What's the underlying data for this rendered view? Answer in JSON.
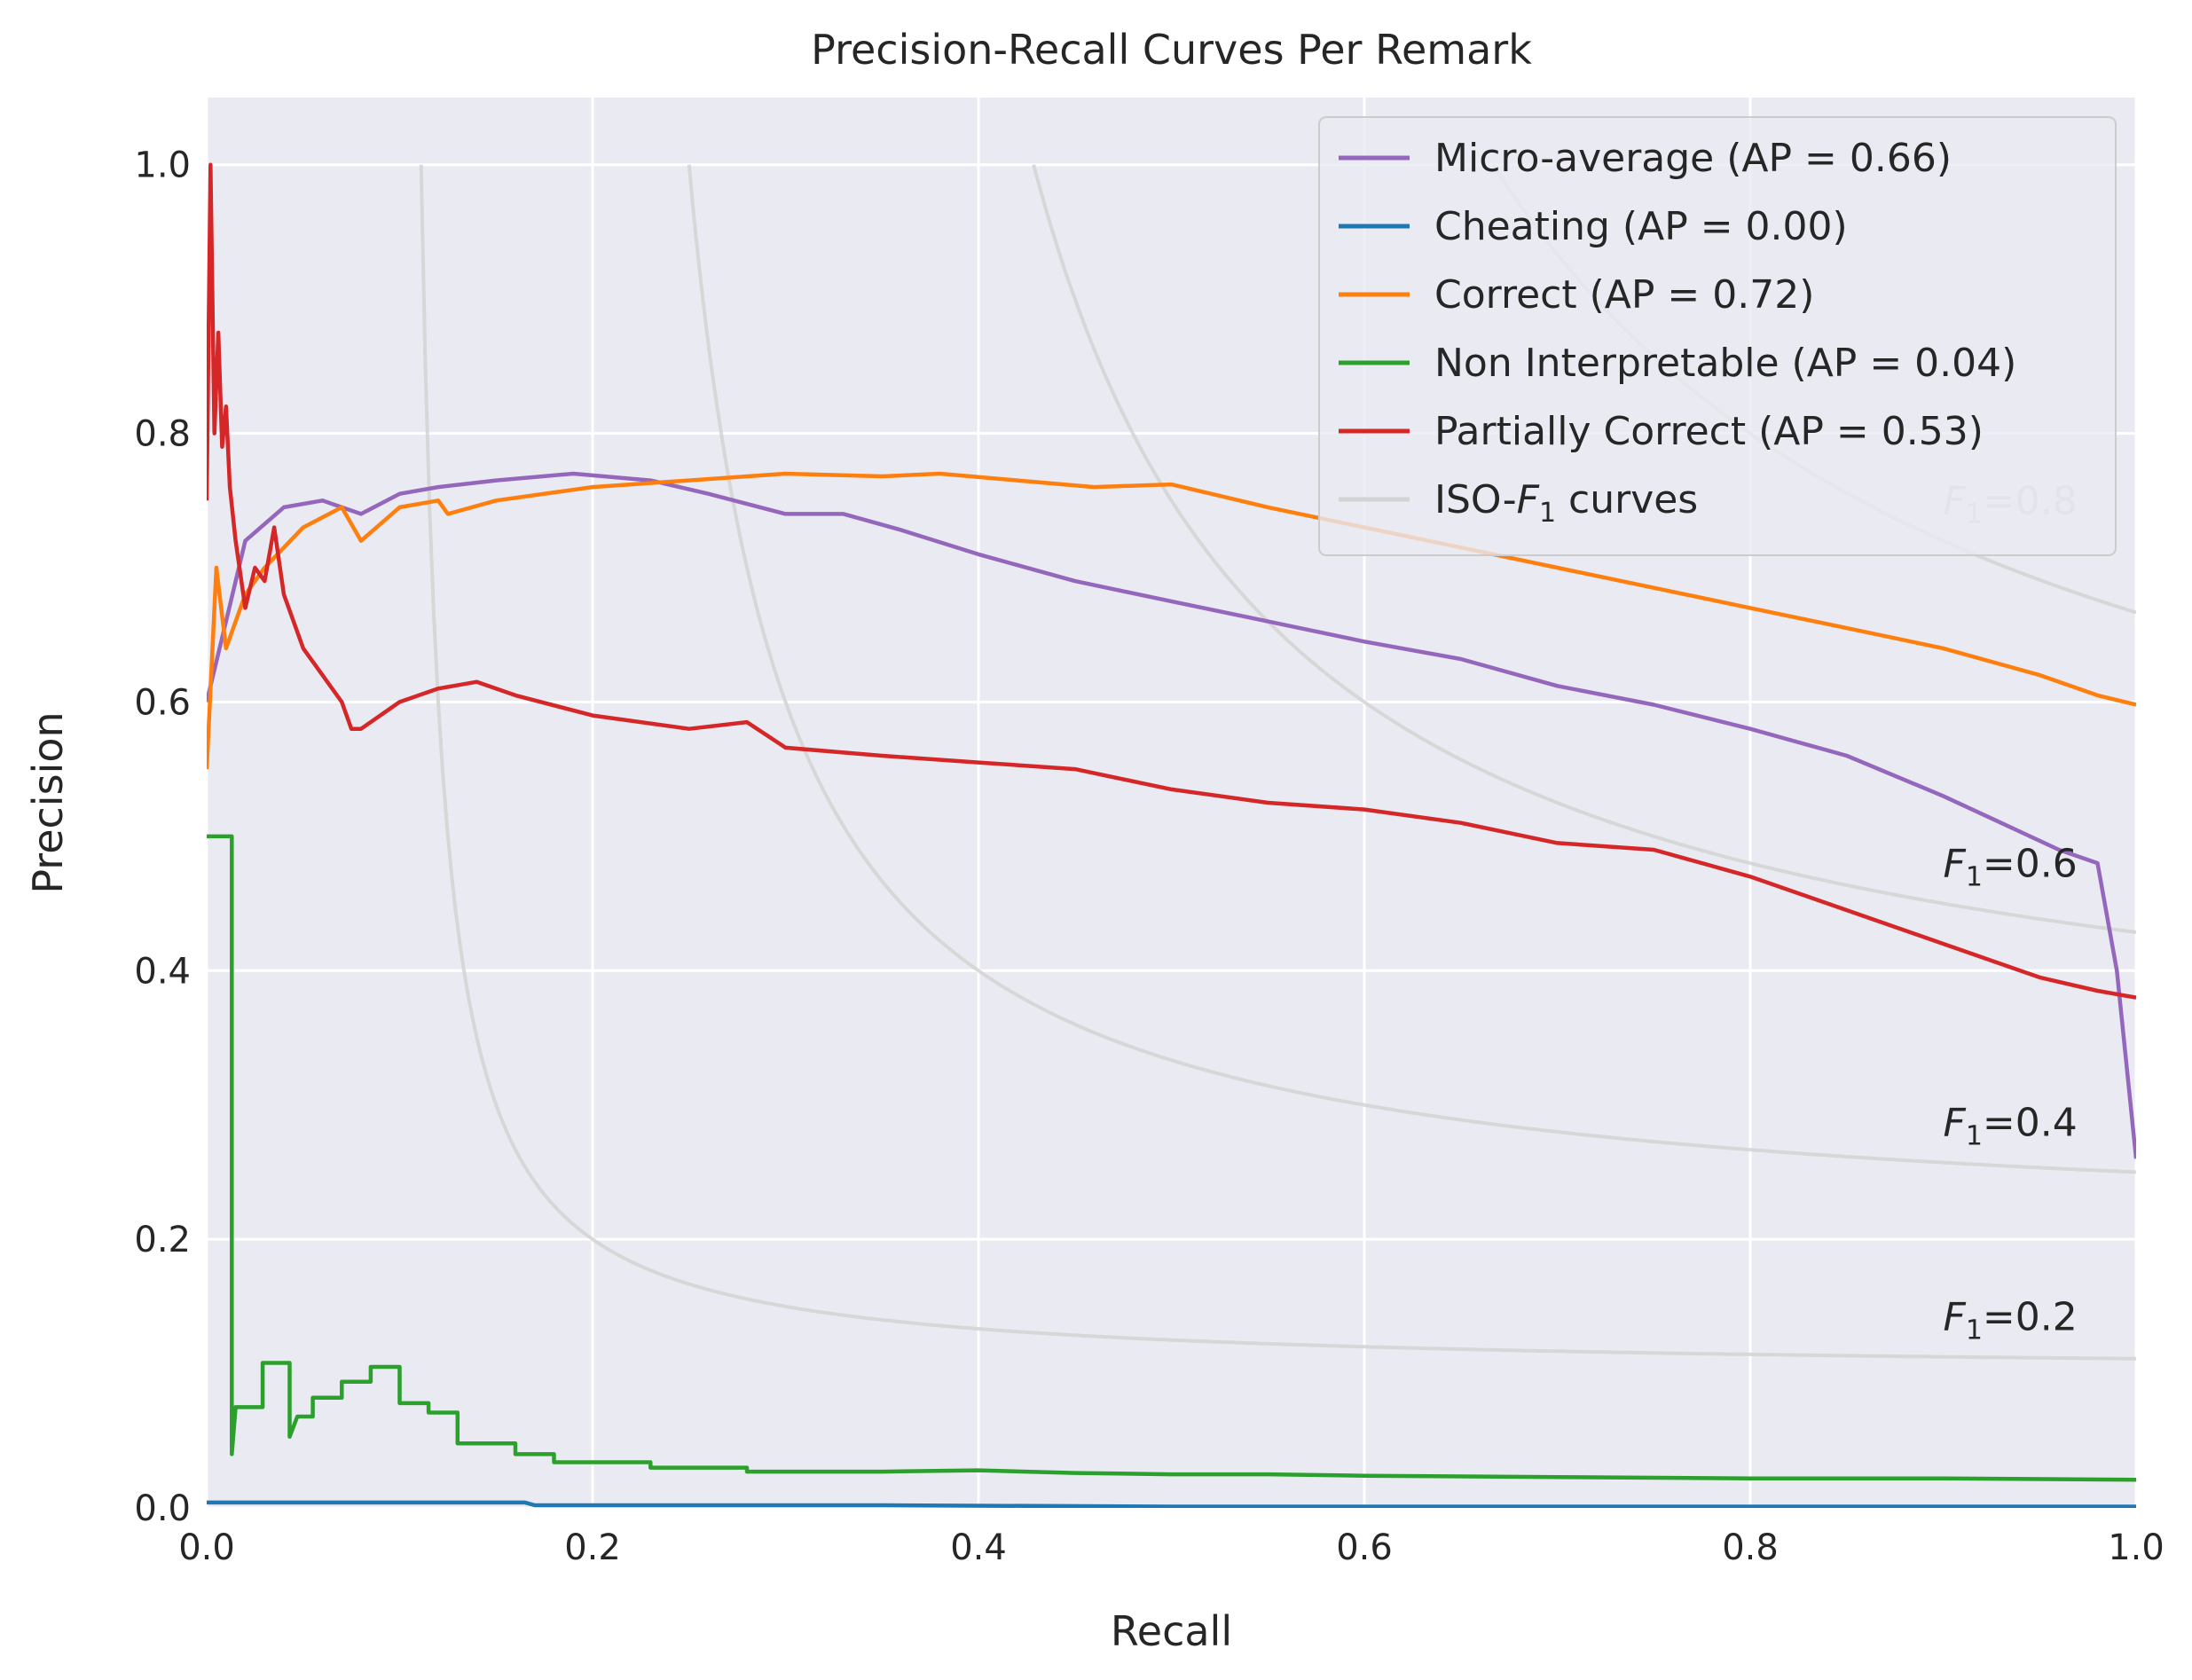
{
  "chart_data": {
    "type": "line",
    "title": "Precision-Recall Curves Per Remark",
    "xlabel": "Recall",
    "ylabel": "Precision",
    "xlim": [
      0.0,
      1.0
    ],
    "ylim": [
      0.0,
      1.05
    ],
    "x_ticks": [
      0.0,
      0.2,
      0.4,
      0.6,
      0.8,
      1.0
    ],
    "x_tick_labels": [
      "0.0",
      "0.2",
      "0.4",
      "0.6",
      "0.8",
      "1.0"
    ],
    "y_ticks": [
      0.0,
      0.2,
      0.4,
      0.6,
      0.8,
      1.0
    ],
    "y_tick_labels": [
      "0.0",
      "0.2",
      "0.4",
      "0.6",
      "0.8",
      "1.0"
    ],
    "grid": true,
    "legend_position": "top-right",
    "series": [
      {
        "name": "Micro-average",
        "legend_label": "Micro-average (AP = 0.66)",
        "color": "#9467bd",
        "step": false,
        "points": [
          [
            0.0,
            0.6
          ],
          [
            0.01,
            0.66
          ],
          [
            0.02,
            0.72
          ],
          [
            0.04,
            0.745
          ],
          [
            0.06,
            0.75
          ],
          [
            0.08,
            0.74
          ],
          [
            0.1,
            0.755
          ],
          [
            0.12,
            0.76
          ],
          [
            0.15,
            0.765
          ],
          [
            0.19,
            0.77
          ],
          [
            0.23,
            0.765
          ],
          [
            0.26,
            0.755
          ],
          [
            0.3,
            0.74
          ],
          [
            0.33,
            0.74
          ],
          [
            0.36,
            0.728
          ],
          [
            0.4,
            0.71
          ],
          [
            0.45,
            0.69
          ],
          [
            0.5,
            0.675
          ],
          [
            0.55,
            0.66
          ],
          [
            0.6,
            0.645
          ],
          [
            0.65,
            0.632
          ],
          [
            0.7,
            0.612
          ],
          [
            0.75,
            0.598
          ],
          [
            0.8,
            0.58
          ],
          [
            0.85,
            0.56
          ],
          [
            0.9,
            0.53
          ],
          [
            0.93,
            0.51
          ],
          [
            0.96,
            0.49
          ],
          [
            0.98,
            0.48
          ],
          [
            0.99,
            0.4
          ],
          [
            1.0,
            0.26
          ]
        ]
      },
      {
        "name": "Cheating",
        "legend_label": "Cheating (AP = 0.00)",
        "color": "#1f77b4",
        "step": false,
        "points": [
          [
            0.0,
            0.004
          ],
          [
            0.165,
            0.004
          ],
          [
            0.17,
            0.002
          ],
          [
            0.35,
            0.002
          ],
          [
            0.5,
            0.001
          ],
          [
            1.0,
            0.001
          ]
        ]
      },
      {
        "name": "Correct",
        "legend_label": "Correct (AP = 0.72)",
        "color": "#ff7f0e",
        "step": false,
        "points": [
          [
            0.0,
            0.55
          ],
          [
            0.005,
            0.7
          ],
          [
            0.01,
            0.64
          ],
          [
            0.02,
            0.68
          ],
          [
            0.03,
            0.7
          ],
          [
            0.05,
            0.73
          ],
          [
            0.07,
            0.745
          ],
          [
            0.08,
            0.72
          ],
          [
            0.1,
            0.745
          ],
          [
            0.12,
            0.75
          ],
          [
            0.125,
            0.74
          ],
          [
            0.15,
            0.75
          ],
          [
            0.2,
            0.76
          ],
          [
            0.25,
            0.765
          ],
          [
            0.3,
            0.77
          ],
          [
            0.35,
            0.768
          ],
          [
            0.38,
            0.77
          ],
          [
            0.42,
            0.765
          ],
          [
            0.46,
            0.76
          ],
          [
            0.5,
            0.762
          ],
          [
            0.55,
            0.745
          ],
          [
            0.6,
            0.73
          ],
          [
            0.65,
            0.715
          ],
          [
            0.7,
            0.7
          ],
          [
            0.75,
            0.685
          ],
          [
            0.8,
            0.67
          ],
          [
            0.85,
            0.655
          ],
          [
            0.9,
            0.64
          ],
          [
            0.95,
            0.62
          ],
          [
            0.98,
            0.605
          ],
          [
            1.0,
            0.598
          ]
        ]
      },
      {
        "name": "Non Interpretable",
        "legend_label": "Non Interpretable (AP = 0.04)",
        "color": "#2ca02c",
        "step": true,
        "points": [
          [
            0.0,
            0.5
          ],
          [
            0.013,
            0.5
          ],
          [
            0.013,
            0.04
          ],
          [
            0.015,
            0.075
          ],
          [
            0.029,
            0.075
          ],
          [
            0.029,
            0.108
          ],
          [
            0.043,
            0.108
          ],
          [
            0.043,
            0.053
          ],
          [
            0.047,
            0.068
          ],
          [
            0.055,
            0.068
          ],
          [
            0.055,
            0.082
          ],
          [
            0.07,
            0.082
          ],
          [
            0.07,
            0.094
          ],
          [
            0.085,
            0.094
          ],
          [
            0.085,
            0.105
          ],
          [
            0.1,
            0.105
          ],
          [
            0.1,
            0.078
          ],
          [
            0.115,
            0.078
          ],
          [
            0.115,
            0.071
          ],
          [
            0.13,
            0.071
          ],
          [
            0.13,
            0.048
          ],
          [
            0.16,
            0.048
          ],
          [
            0.16,
            0.04
          ],
          [
            0.18,
            0.04
          ],
          [
            0.18,
            0.034
          ],
          [
            0.23,
            0.034
          ],
          [
            0.23,
            0.03
          ],
          [
            0.28,
            0.03
          ],
          [
            0.28,
            0.027
          ],
          [
            0.35,
            0.027
          ],
          [
            0.4,
            0.028
          ],
          [
            0.45,
            0.026
          ],
          [
            0.5,
            0.025
          ],
          [
            0.55,
            0.025
          ],
          [
            0.6,
            0.024
          ],
          [
            0.7,
            0.023
          ],
          [
            0.8,
            0.022
          ],
          [
            0.9,
            0.022
          ],
          [
            1.0,
            0.021
          ]
        ]
      },
      {
        "name": "Partially Correct",
        "legend_label": "Partially Correct (AP = 0.53)",
        "color": "#d62728",
        "step": false,
        "points": [
          [
            0.0,
            0.75
          ],
          [
            0.002,
            1.0
          ],
          [
            0.004,
            0.8
          ],
          [
            0.006,
            0.875
          ],
          [
            0.008,
            0.79
          ],
          [
            0.01,
            0.82
          ],
          [
            0.012,
            0.76
          ],
          [
            0.015,
            0.72
          ],
          [
            0.02,
            0.67
          ],
          [
            0.025,
            0.7
          ],
          [
            0.03,
            0.69
          ],
          [
            0.035,
            0.73
          ],
          [
            0.04,
            0.68
          ],
          [
            0.05,
            0.64
          ],
          [
            0.06,
            0.62
          ],
          [
            0.07,
            0.6
          ],
          [
            0.075,
            0.58
          ],
          [
            0.08,
            0.58
          ],
          [
            0.1,
            0.6
          ],
          [
            0.12,
            0.61
          ],
          [
            0.14,
            0.615
          ],
          [
            0.16,
            0.605
          ],
          [
            0.2,
            0.59
          ],
          [
            0.25,
            0.58
          ],
          [
            0.28,
            0.585
          ],
          [
            0.3,
            0.566
          ],
          [
            0.35,
            0.56
          ],
          [
            0.4,
            0.555
          ],
          [
            0.45,
            0.55
          ],
          [
            0.5,
            0.535
          ],
          [
            0.55,
            0.525
          ],
          [
            0.6,
            0.52
          ],
          [
            0.65,
            0.51
          ],
          [
            0.7,
            0.495
          ],
          [
            0.75,
            0.49
          ],
          [
            0.8,
            0.47
          ],
          [
            0.85,
            0.445
          ],
          [
            0.9,
            0.42
          ],
          [
            0.95,
            0.395
          ],
          [
            0.98,
            0.385
          ],
          [
            1.0,
            0.38
          ]
        ]
      }
    ],
    "iso_f1": {
      "legend_label": "ISO-F1 curves",
      "color": "#d3d3d3",
      "levels": [
        0.2,
        0.4,
        0.6,
        0.8
      ],
      "labels": [
        "F1=0.2",
        "F1=0.4",
        "F1=0.6",
        "F1=0.8"
      ]
    }
  }
}
